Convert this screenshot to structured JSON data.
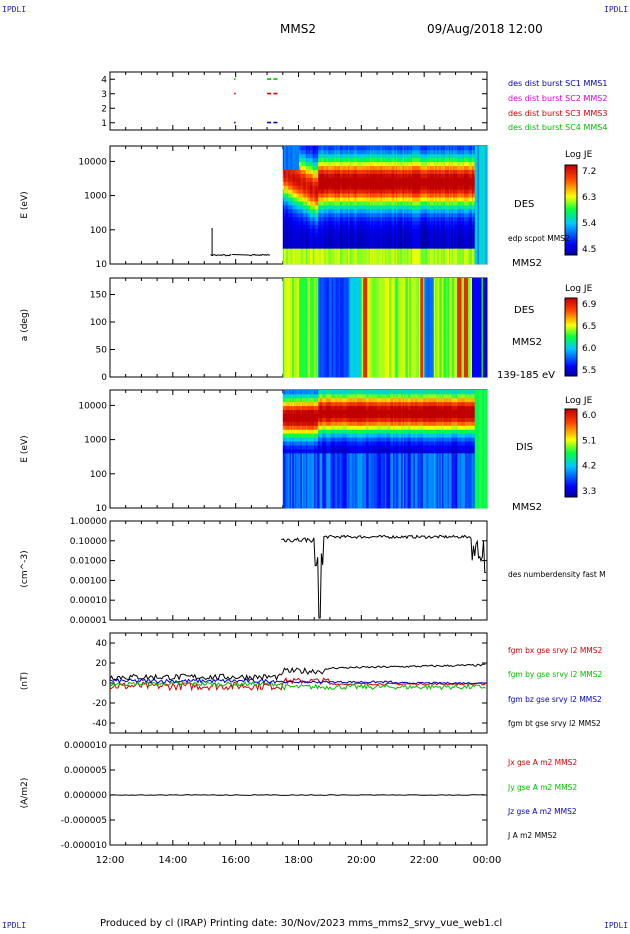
{
  "corners": {
    "tl": "IPDLI",
    "tr": "IPDLI",
    "bl": "IPDLI",
    "br": "IPDLI"
  },
  "header": {
    "spacecraft": "MMS2",
    "datetime": "09/Aug/2018 12:00"
  },
  "footer": {
    "text": "Produced by cl (IRAP)   Printing date: 30/Nov/2023   mms_mms2_srvy_vue_web1.cl"
  },
  "colors": {
    "mms1": "#0000c0",
    "mms2": "#d000d0",
    "mms3": "#d00000",
    "mms4": "#00c000",
    "bx": "#d00000",
    "by": "#00c000",
    "bz": "#0000c0",
    "bt": "#000000"
  },
  "chart_data": [
    {
      "type": "scatter",
      "name_panel": "burst",
      "ylim": [
        0.5,
        4.5
      ],
      "yticks": [
        "1",
        "2",
        "3",
        "4"
      ],
      "legend": [
        "des dist burst SC1 MMS1",
        "des dist burst SC2 MMS2",
        "des dist burst SC3 MMS3",
        "des dist burst SC4 MMS4"
      ],
      "points": [
        {
          "x": 15.95,
          "y": 1
        },
        {
          "x": 17.0,
          "y": 1
        },
        {
          "x": 17.2,
          "y": 1
        },
        {
          "x": 15.95,
          "y": 3
        },
        {
          "x": 17.0,
          "y": 3
        },
        {
          "x": 17.2,
          "y": 3
        },
        {
          "x": 15.95,
          "y": 4
        },
        {
          "x": 17.0,
          "y": 4
        },
        {
          "x": 17.2,
          "y": 4
        }
      ]
    },
    {
      "type": "heatmap",
      "name_panel": "des-energy",
      "ylabel": "E (eV)",
      "yticks": [
        "10",
        "100",
        "1000",
        "10000"
      ],
      "label": "DES",
      "sublabel": "MMS2",
      "overlay_label": "edp scpot MMS2",
      "colorbar": {
        "title": "Log JE",
        "ticks": [
          "7.2",
          "6.3",
          "5.4",
          "4.5"
        ]
      }
    },
    {
      "type": "heatmap",
      "name_panel": "des-pitch",
      "ylabel": "a (deg)",
      "yticks": [
        "0",
        "50",
        "100",
        "150"
      ],
      "label": "DES",
      "sublabel": "MMS2",
      "energy_range": "139-185 eV",
      "colorbar": {
        "title": "Log JE",
        "ticks": [
          "6.9",
          "6.5",
          "6.0",
          "5.5"
        ]
      }
    },
    {
      "type": "heatmap",
      "name_panel": "dis-energy",
      "ylabel": "E (eV)",
      "yticks": [
        "10",
        "100",
        "1000",
        "10000"
      ],
      "label": "DIS",
      "sublabel": "MMS2",
      "colorbar": {
        "title": "Log JE",
        "ticks": [
          "6.0",
          "5.1",
          "4.2",
          "3.3"
        ]
      }
    },
    {
      "type": "line",
      "name_panel": "density",
      "ylabel": "(cm^-3)",
      "yticks": [
        "1.00000",
        "0.10000",
        "0.01000",
        "0.00100",
        "0.00010",
        "0.00001"
      ],
      "legend": [
        "des numberdensity fast M"
      ]
    },
    {
      "type": "line",
      "name_panel": "magnetic-field",
      "ylabel": "(nT)",
      "ylim": [
        -50,
        50
      ],
      "yticks": [
        "40",
        "20",
        "0",
        "-20",
        "-40"
      ],
      "legend": [
        "fgm bx gse srvy l2 MMS2",
        "fgm by gse srvy l2 MMS2",
        "fgm bz gse srvy l2 MMS2",
        "fgm bt gse srvy l2 MMS2"
      ]
    },
    {
      "type": "line",
      "name_panel": "current-density",
      "ylabel": "(A/m2)",
      "yticks": [
        "0.000010",
        "0.000005",
        "0.000000",
        "-0.000005",
        "-0.000010"
      ],
      "legend": [
        "Jx gse A m2 MMS2",
        "Jy gse A m2 MMS2",
        "Jz gse A m2 MMS2",
        "J A m2 MMS2"
      ]
    }
  ],
  "xaxis": {
    "ticks": [
      "12:00",
      "14:00",
      "16:00",
      "18:00",
      "20:00",
      "22:00",
      "00:00"
    ]
  }
}
